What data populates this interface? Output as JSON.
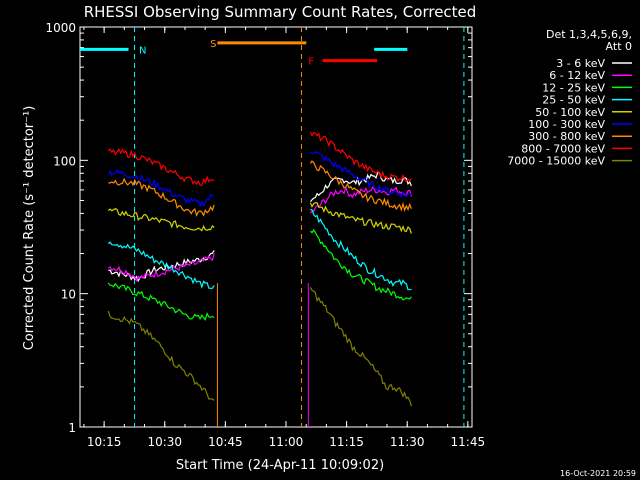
{
  "chart_data": {
    "type": "line",
    "title": "RHESSI Observing Summary Count Rates, Corrected",
    "xlabel": "Start Time (24-Apr-11 10:09:02)",
    "ylabel": "Corrected Count Rate (s⁻¹ detector⁻¹)",
    "footer": "16-Oct-2021 20:59",
    "log_y": true,
    "ylim": [
      1,
      1000
    ],
    "xlim_min": [
      0,
      97
    ],
    "x_ticks": [
      {
        "label": "10:15",
        "min": 5.97
      },
      {
        "label": "10:30",
        "min": 20.97
      },
      {
        "label": "10:45",
        "min": 35.97
      },
      {
        "label": "11:00",
        "min": 50.97
      },
      {
        "label": "11:15",
        "min": 65.97
      },
      {
        "label": "11:30",
        "min": 80.97
      },
      {
        "label": "11:45",
        "min": 95.97
      }
    ],
    "y_ticks": [
      {
        "label": "1",
        "v": 1
      },
      {
        "label": "10",
        "v": 10
      },
      {
        "label": "100",
        "v": 100
      },
      {
        "label": "1000",
        "v": 1000
      }
    ],
    "legend": {
      "header1": "Det 1,3,4,5,6,9,",
      "header2": "Att 0",
      "position": "right"
    },
    "gaps": [
      [
        34,
        56.5
      ]
    ],
    "series": [
      {
        "name": "3 - 6 keV",
        "color": "#ffffff",
        "seg1": [
          15,
          14,
          13,
          15,
          16,
          17,
          18,
          20
        ],
        "seg2": [
          50,
          55,
          65,
          70,
          72,
          68,
          70,
          74,
          78,
          72,
          70,
          72,
          68
        ]
      },
      {
        "name": "6 - 12 keV",
        "color": "#ff00ff",
        "seg1": [
          16,
          15,
          13,
          14,
          15,
          16,
          17,
          19
        ],
        "seg2": [
          40,
          45,
          52,
          58,
          60,
          55,
          58,
          60,
          60,
          58,
          60,
          58,
          57
        ]
      },
      {
        "name": "12 - 25 keV",
        "color": "#00ff00",
        "seg1": [
          12,
          11,
          10,
          9,
          8,
          7,
          6.5,
          7
        ],
        "seg2": [
          30,
          26,
          22,
          18,
          16,
          14,
          13,
          12,
          11,
          10.5,
          10,
          9.5,
          9
        ]
      },
      {
        "name": "25 - 50 keV",
        "color": "#00ffff",
        "seg1": [
          25,
          23,
          21,
          18,
          16,
          14,
          12,
          11
        ],
        "seg2": [
          42,
          36,
          30,
          25,
          22,
          19,
          17,
          15,
          14,
          13,
          12,
          12,
          11
        ]
      },
      {
        "name": "50 - 100 keV",
        "color": "#d4d400",
        "seg1": [
          42,
          40,
          38,
          36,
          34,
          32,
          31,
          32
        ],
        "seg2": [
          48,
          45,
          42,
          40,
          38,
          36,
          35,
          34,
          33,
          32,
          32,
          31,
          30
        ]
      },
      {
        "name": "100 - 300 keV",
        "color": "#0000ff",
        "seg1": [
          82,
          80,
          76,
          70,
          63,
          55,
          50,
          47,
          55
        ],
        "seg2": [
          120,
          110,
          100,
          92,
          85,
          78,
          72,
          67,
          63,
          60,
          58,
          56,
          55
        ]
      },
      {
        "name": "300 - 800 keV",
        "color": "#ff8c00",
        "seg1": [
          70,
          69,
          67,
          62,
          55,
          48,
          42,
          40,
          45
        ],
        "seg2": [
          95,
          88,
          80,
          72,
          66,
          60,
          55,
          52,
          50,
          48,
          46,
          45,
          44
        ]
      },
      {
        "name": "800 - 7000 keV",
        "color": "#ff0000",
        "seg1": [
          115,
          114,
          110,
          100,
          90,
          80,
          72,
          68,
          75
        ],
        "seg2": [
          160,
          150,
          140,
          125,
          112,
          100,
          92,
          85,
          80,
          76,
          75,
          74,
          73
        ]
      },
      {
        "name": "7000 - 15000 keV",
        "color": "#808000",
        "seg1": [
          7,
          6.5,
          6,
          5,
          4,
          3,
          2.5,
          2,
          1.5
        ],
        "seg2": [
          11,
          9,
          7.5,
          6,
          5,
          4,
          3.5,
          3,
          2.5,
          2,
          2,
          1.8,
          1.5
        ]
      }
    ],
    "annotations": [
      {
        "label": "N",
        "color": "#00ffff",
        "x_line": 13.5,
        "x_text": 14.6,
        "y": 680,
        "bar": [
          [
            0,
            12
          ],
          [
            72.8,
            81
          ]
        ],
        "dashed_x": [
          13.5,
          95
        ]
      },
      {
        "label": "S",
        "color": "#ff8c00",
        "x_text": 32.2,
        "y": 760,
        "bar": [
          [
            34,
            56
          ]
        ],
        "dashed_x": [
          54.8
        ]
      },
      {
        "label": "F",
        "color": "#ff0000",
        "x_text": 56.5,
        "y": 560,
        "bar": [
          [
            60,
            73.5
          ]
        ],
        "dashed_x": []
      }
    ]
  }
}
